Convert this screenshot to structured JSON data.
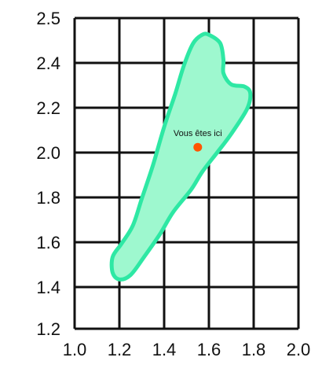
{
  "chart_data": {
    "type": "scatter",
    "x_ticks": [
      "1.0",
      "1.2",
      "1.4",
      "1.6",
      "1.8",
      "2.0"
    ],
    "y_ticks": [
      "2.5",
      "2.4",
      "2.2",
      "2.0",
      "1.8",
      "1.6",
      "1.4",
      "1.2"
    ],
    "xlim": [
      1.0,
      2.0
    ],
    "ylim": [
      1.2,
      2.5
    ],
    "grid": true,
    "region": {
      "fill_color": "#9ef8cf",
      "stroke_color": "#2ee8a4",
      "outline": [
        [
          1.6,
          2.46
        ],
        [
          1.65,
          2.44
        ],
        [
          1.665,
          2.4
        ],
        [
          1.665,
          2.34
        ],
        [
          1.7,
          2.29
        ],
        [
          1.76,
          2.28
        ],
        [
          1.785,
          2.25
        ],
        [
          1.77,
          2.18
        ],
        [
          1.7,
          2.07
        ],
        [
          1.64,
          1.99
        ],
        [
          1.57,
          1.9
        ],
        [
          1.52,
          1.82
        ],
        [
          1.44,
          1.72
        ],
        [
          1.38,
          1.62
        ],
        [
          1.31,
          1.52
        ],
        [
          1.25,
          1.44
        ],
        [
          1.2,
          1.42
        ],
        [
          1.17,
          1.45
        ],
        [
          1.17,
          1.52
        ],
        [
          1.21,
          1.58
        ],
        [
          1.26,
          1.66
        ],
        [
          1.3,
          1.78
        ],
        [
          1.35,
          1.93
        ],
        [
          1.4,
          2.1
        ],
        [
          1.45,
          2.25
        ],
        [
          1.49,
          2.38
        ],
        [
          1.53,
          2.44
        ],
        [
          1.57,
          2.46
        ]
      ]
    },
    "marker": {
      "label": "Vous êtes ici",
      "x": 1.55,
      "y": 2.01,
      "color": "#ff5500"
    }
  }
}
